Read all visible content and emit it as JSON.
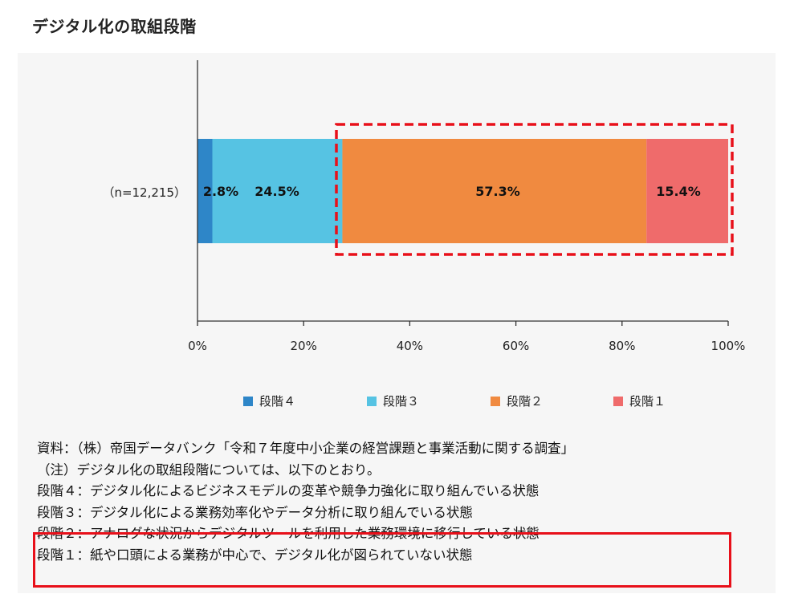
{
  "title": "デジタル化の取組段階",
  "chart_data": {
    "type": "bar",
    "orientation": "horizontal-stacked-100",
    "categories": [
      "（n=12,215）"
    ],
    "series": [
      {
        "name": "段階４",
        "values": [
          2.8
        ],
        "color": "#2e86c8",
        "label": "2.8%"
      },
      {
        "name": "段階３",
        "values": [
          24.5
        ],
        "color": "#56c3e3",
        "label": "24.5%"
      },
      {
        "name": "段階２",
        "values": [
          57.3
        ],
        "color": "#f08a40",
        "label": "57.3%"
      },
      {
        "name": "段階１",
        "values": [
          15.4
        ],
        "color": "#ef6b6b",
        "label": "15.4%"
      }
    ],
    "x_ticks": [
      "0%",
      "20%",
      "40%",
      "60%",
      "80%",
      "100%"
    ],
    "xlim": [
      0,
      100
    ],
    "legend_position": "bottom",
    "highlight": "dashed red box around 段階２ and 段階１"
  },
  "notes": [
    "資料：（株）帝国データバンク「令和７年度中小企業の経営課題と事業活動に関する調査」",
    "（注）デジタル化の取組段階については、以下のとおり。",
    "段階４：デジタル化によるビジネスモデルの変革や競争力強化に取り組んでいる状態",
    "段階３：デジタル化による業務効率化やデータ分析に取り組んでいる状態",
    "段階２：アナログな状況からデジタルツールを利用した業務環境に移行している状態",
    "段階１：紙や口頭による業務が中心で、デジタル化が図られていない状態"
  ],
  "colors": {
    "highlight": "#e8101a",
    "axis": "#333333"
  }
}
